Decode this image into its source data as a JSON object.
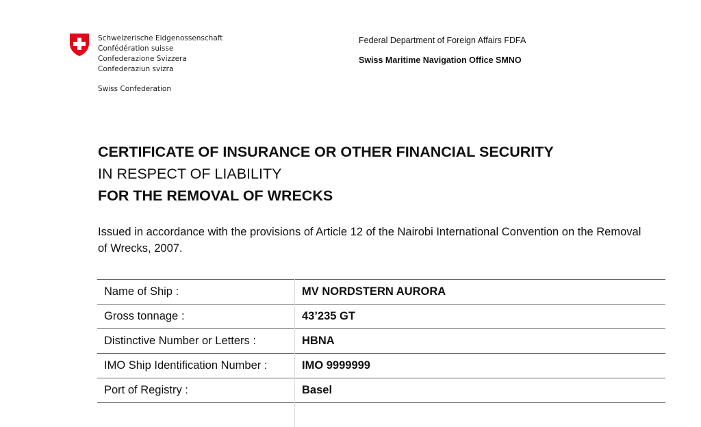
{
  "header": {
    "confederation_names": [
      "Schweizerische Eidgenossenschaft",
      "Confédération suisse",
      "Confederazione Svizzera",
      "Confederaziun svizra"
    ],
    "confederation_en": "Swiss Confederation",
    "department": "Federal Department of Foreign Affairs FDFA",
    "office": "Swiss Maritime Navigation Office SMNO",
    "logo_color": "#e4071b"
  },
  "title": {
    "line1": "CERTIFICATE OF INSURANCE OR OTHER FINANCIAL SECURITY",
    "line2": "IN RESPECT OF LIABILITY",
    "line3": "FOR THE REMOVAL OF WRECKS"
  },
  "intro": "Issued in accordance with the provisions of Article 12 of the Nairobi International Convention on the Removal of Wrecks, 2007.",
  "rows": [
    {
      "label": "Name of Ship :",
      "value": "MV NORDSTERN AURORA"
    },
    {
      "label": "Gross tonnage :",
      "value": "43’235 GT"
    },
    {
      "label": "Distinctive Number or Letters :",
      "value": "HBNA"
    },
    {
      "label": "IMO Ship Identification Number :",
      "value": "IMO 9999999"
    },
    {
      "label": "Port of Registry :",
      "value": "Basel"
    }
  ]
}
